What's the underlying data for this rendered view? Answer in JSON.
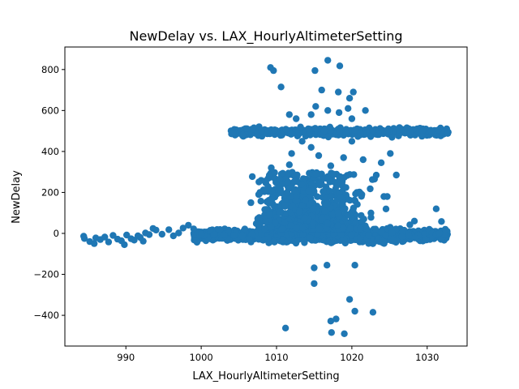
{
  "chart_data": {
    "type": "scatter",
    "title": "NewDelay vs. LAX_HourlyAltimeterSetting",
    "xlabel": "LAX_HourlyAltimeterSetting",
    "ylabel": "NewDelay",
    "xlim": [
      981.9,
      1035.3
    ],
    "ylim": [
      -550,
      910
    ],
    "xticks": [
      990,
      1000,
      1010,
      1020,
      1030
    ],
    "yticks": [
      -400,
      -200,
      0,
      200,
      400,
      600,
      800
    ],
    "ytick_labels": [
      "−400",
      "−200",
      "0",
      "200",
      "400",
      "600",
      "800"
    ],
    "grid": false,
    "marker_color": "#1f77b4",
    "series": [
      {
        "points": [
          [
            984.4,
            -14
          ],
          [
            984.5,
            -25
          ],
          [
            985.2,
            -40
          ],
          [
            985.8,
            -50
          ],
          [
            986.0,
            -22
          ],
          [
            986.6,
            -30
          ],
          [
            987.2,
            -18
          ],
          [
            987.7,
            -42
          ],
          [
            988.3,
            -10
          ],
          [
            988.9,
            -28
          ],
          [
            989.4,
            -36
          ],
          [
            989.8,
            -55
          ],
          [
            990.1,
            -8
          ],
          [
            990.7,
            -26
          ],
          [
            991.1,
            -33
          ],
          [
            991.6,
            -12
          ],
          [
            991.9,
            -20
          ],
          [
            992.3,
            -38
          ],
          [
            992.6,
            2
          ],
          [
            993.1,
            -6
          ],
          [
            993.6,
            24
          ],
          [
            994.0,
            16
          ],
          [
            994.8,
            -4
          ],
          [
            995.7,
            18
          ],
          [
            996.3,
            -12
          ],
          [
            997.0,
            2
          ],
          [
            997.6,
            26
          ],
          [
            998.3,
            40
          ],
          [
            999.0,
            22
          ],
          [
            1006.6,
            150
          ],
          [
            1007.8,
            200
          ],
          [
            1008.5,
            255
          ],
          [
            1009.3,
            320
          ],
          [
            1010.4,
            225
          ],
          [
            1011.7,
            335
          ],
          [
            1012.0,
            390
          ],
          [
            1013.4,
            450
          ],
          [
            1014.6,
            420
          ],
          [
            1015.6,
            380
          ],
          [
            1017.2,
            330
          ],
          [
            1018.9,
            370
          ],
          [
            1020.0,
            450
          ],
          [
            1021.5,
            360
          ],
          [
            1023.0,
            265
          ],
          [
            1023.9,
            345
          ],
          [
            1025.1,
            390
          ],
          [
            1025.9,
            285
          ],
          [
            1024.7,
            180
          ],
          [
            1011.7,
            580
          ],
          [
            1012.6,
            560
          ],
          [
            1014.6,
            580
          ],
          [
            1015.2,
            620
          ],
          [
            1016.8,
            600
          ],
          [
            1018.3,
            590
          ],
          [
            1019.5,
            610
          ],
          [
            1020.0,
            560
          ],
          [
            1021.8,
            600
          ],
          [
            1016.0,
            700
          ],
          [
            1018.2,
            690
          ],
          [
            1020.2,
            690
          ],
          [
            1019.7,
            660
          ],
          [
            1009.2,
            810
          ],
          [
            1009.6,
            795
          ],
          [
            1010.6,
            715
          ],
          [
            1015.1,
            795
          ],
          [
            1016.8,
            845
          ],
          [
            1018.4,
            818
          ],
          [
            1015.0,
            -168
          ],
          [
            1016.7,
            -155
          ],
          [
            1020.4,
            -155
          ],
          [
            1015.0,
            -245
          ],
          [
            1019.7,
            -322
          ],
          [
            1020.4,
            -380
          ],
          [
            1022.8,
            -385
          ],
          [
            1017.2,
            -428
          ],
          [
            1017.9,
            -418
          ],
          [
            1011.2,
            -462
          ],
          [
            1017.3,
            -484
          ],
          [
            1019.0,
            -490
          ],
          [
            1031.2,
            120
          ],
          [
            1031.9,
            58
          ],
          [
            1032.4,
            20
          ],
          [
            1028.3,
            60
          ],
          [
            1027.7,
            42
          ]
        ]
      }
    ]
  }
}
